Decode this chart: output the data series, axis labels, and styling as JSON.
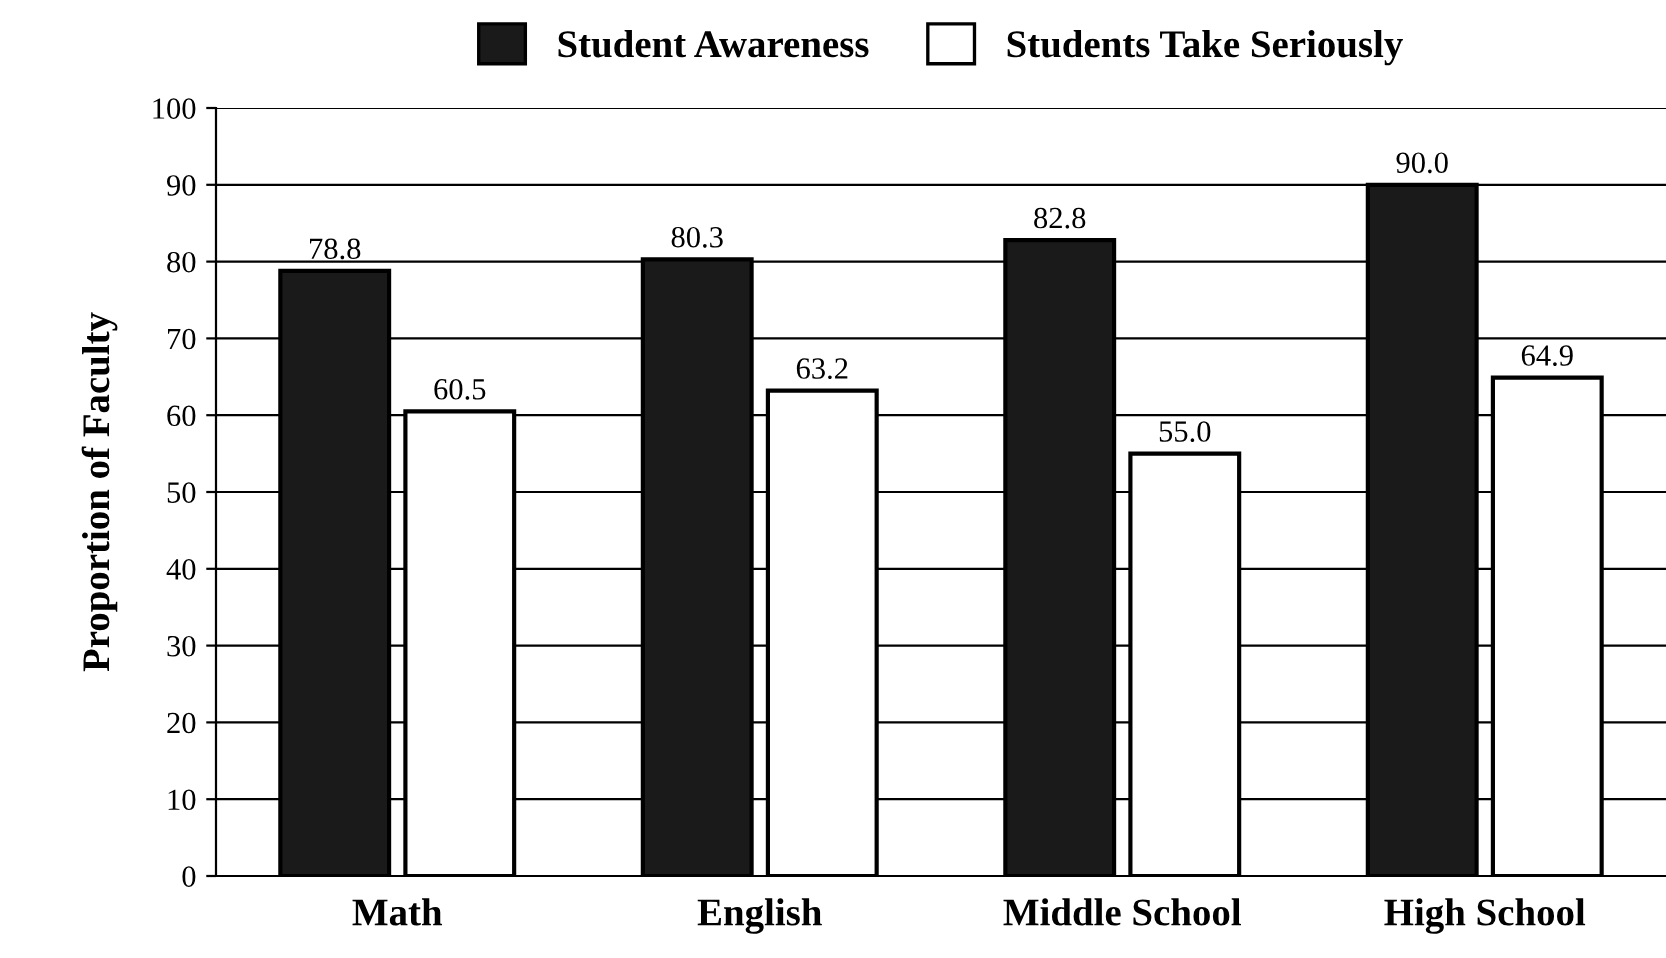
{
  "chart_data": {
    "type": "bar",
    "ylabel": "Proportion of Faculty",
    "categories": [
      "Math",
      "English",
      "Middle School",
      "High School"
    ],
    "series": [
      {
        "name": "Student Awareness",
        "color": "#1a1a1a",
        "values": [
          78.8,
          80.3,
          82.8,
          90.0
        ],
        "value_labels": [
          "78.8",
          "80.3",
          "82.8",
          "90.0"
        ]
      },
      {
        "name": "Students Take Seriously",
        "color": "#ffffff",
        "values": [
          60.5,
          63.2,
          55.0,
          64.9
        ],
        "value_labels": [
          "60.5",
          "63.2",
          "55.0",
          "64.9"
        ]
      }
    ],
    "ylim": [
      0,
      100
    ],
    "yticks": [
      0,
      10,
      20,
      30,
      40,
      50,
      60,
      70,
      80,
      90,
      100
    ],
    "grid": "y",
    "legend": "top"
  }
}
